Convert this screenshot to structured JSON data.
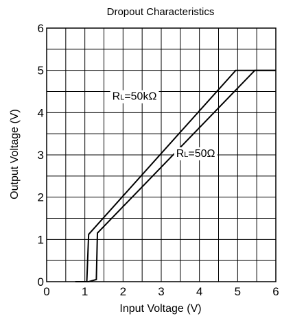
{
  "chart_data": {
    "type": "line",
    "title": "Dropout Characteristics",
    "xlabel": "Input Voltage (V)",
    "ylabel": "Output Voltage (V)",
    "xlim": [
      0,
      6
    ],
    "ylim": [
      0,
      6
    ],
    "grid": true,
    "x_minor_step": 0.5,
    "y_minor_step": 0.5,
    "x_ticks": [
      0,
      1,
      2,
      3,
      4,
      5,
      6
    ],
    "y_ticks": [
      0,
      1,
      2,
      3,
      4,
      5,
      6
    ],
    "series": [
      {
        "name": "RL=50kΩ",
        "label_prefix": "R",
        "label_subscript": "L",
        "label_suffix": "=50kΩ",
        "label_at": [
          2.3,
          4.4
        ],
        "points": [
          [
            0.75,
            0.0
          ],
          [
            1.05,
            0.0
          ],
          [
            1.1,
            1.12
          ],
          [
            4.95,
            5.0
          ],
          [
            6.0,
            5.0
          ]
        ]
      },
      {
        "name": "RL=50Ω",
        "label_prefix": "R",
        "label_subscript": "L",
        "label_suffix": "=50Ω",
        "label_at": [
          3.9,
          3.05
        ],
        "points": [
          [
            0.75,
            0.0
          ],
          [
            1.1,
            0.0
          ],
          [
            1.3,
            0.05
          ],
          [
            1.33,
            1.15
          ],
          [
            5.45,
            5.0
          ],
          [
            6.0,
            5.0
          ]
        ]
      }
    ]
  }
}
